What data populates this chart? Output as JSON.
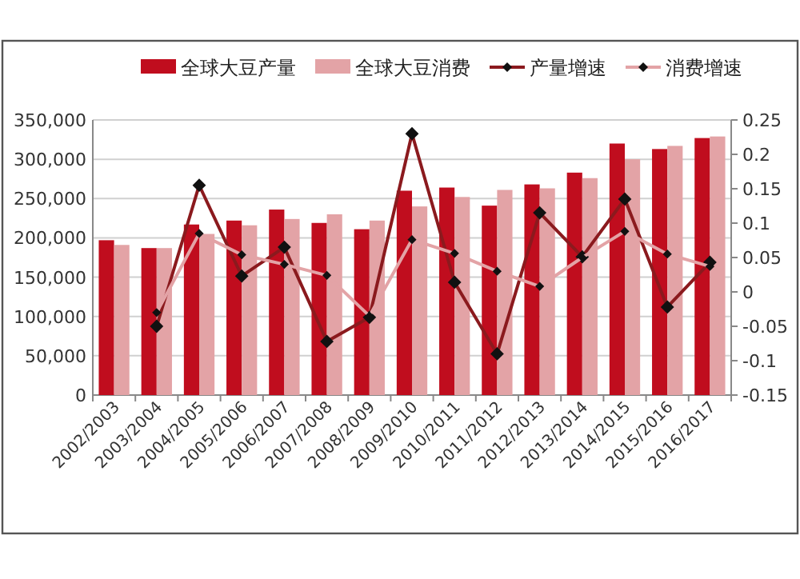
{
  "chart_data": {
    "type": "bar",
    "categories": [
      "2002/2003",
      "2003/2004",
      "2004/2005",
      "2005/2006",
      "2006/2007",
      "2007/2008",
      "2008/2009",
      "2009/2010",
      "2010/2011",
      "2011/2012",
      "2012/2013",
      "2013/2014",
      "2014/2015",
      "2015/2016",
      "2016/2017"
    ],
    "series": [
      {
        "name": "全球大豆产量",
        "color": "#c00d1e",
        "values": [
          197000,
          187000,
          217000,
          222000,
          236000,
          219000,
          211000,
          260000,
          264000,
          241000,
          268000,
          283000,
          320000,
          313000,
          327000
        ]
      },
      {
        "name": "全球大豆消费",
        "color": "#e3a3a6",
        "values": [
          191000,
          187000,
          205000,
          216000,
          224000,
          230000,
          222000,
          240000,
          252000,
          261000,
          263000,
          276000,
          300000,
          317000,
          329000
        ]
      },
      {
        "name": "产量增速",
        "type": "line",
        "axis": "y2",
        "color": "#8b1a1e",
        "values": [
          null,
          -0.05,
          0.155,
          0.023,
          0.065,
          -0.072,
          -0.037,
          0.23,
          0.014,
          -0.09,
          0.115,
          0.051,
          0.135,
          -0.022,
          0.043
        ]
      },
      {
        "name": "消费增速",
        "type": "line",
        "axis": "y2",
        "color": "#e3a3a6",
        "values": [
          null,
          -0.03,
          0.085,
          0.054,
          0.04,
          0.024,
          -0.035,
          0.076,
          0.056,
          0.03,
          0.008,
          0.05,
          0.088,
          0.055,
          0.037
        ]
      }
    ],
    "ylim": [
      0,
      350000
    ],
    "yticks": [
      0,
      {
        "value": 50000,
        "label": "50,000"
      },
      {
        "value": 100000,
        "label": "100,000"
      },
      {
        "value": 150000,
        "label": "150,000"
      },
      {
        "value": 200000,
        "label": "200,000"
      },
      {
        "value": 250000,
        "label": "250,000"
      },
      {
        "value": 300000,
        "label": "300,000"
      },
      {
        "value": 350000,
        "label": "350,000"
      }
    ],
    "y2lim": [
      -0.15,
      0.25
    ],
    "y2ticks": [
      -0.15,
      -0.1,
      -0.05,
      0,
      0.05,
      0.1,
      0.15,
      0.2,
      0.25
    ],
    "grid": "y",
    "legend": "top",
    "marker": "diamond",
    "line_style": "solid"
  }
}
